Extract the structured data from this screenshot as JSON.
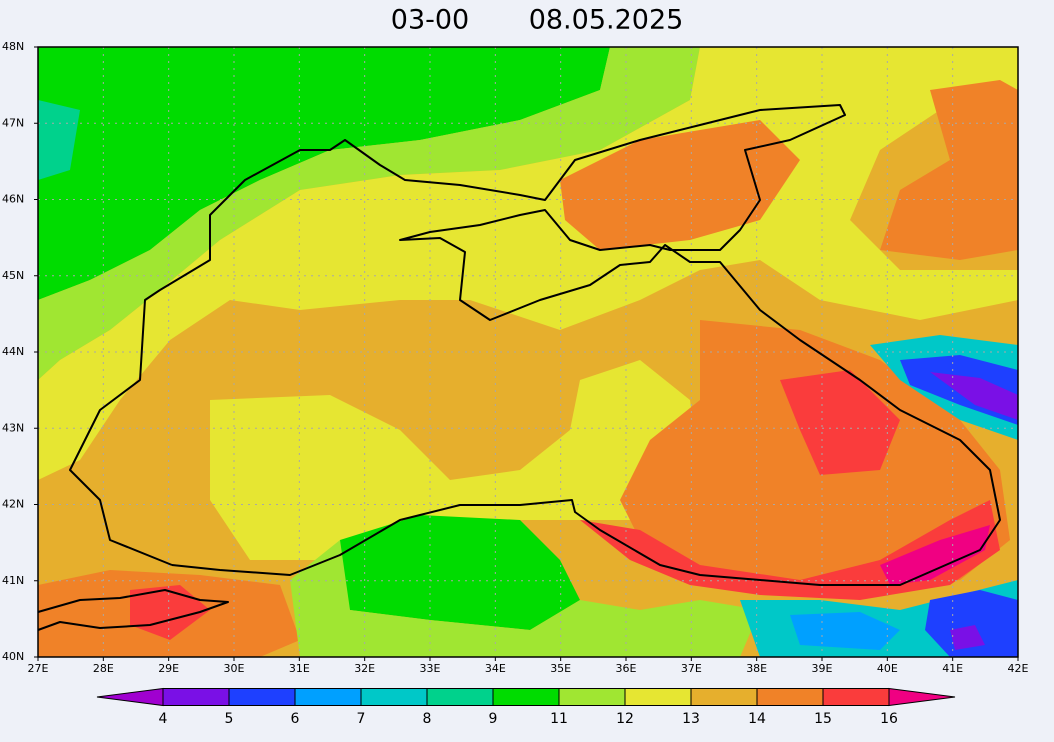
{
  "header": {
    "time": "03-00",
    "date": "08.05.2025"
  },
  "map": {
    "lat_labels": [
      "48N",
      "47N",
      "46N",
      "45N",
      "44N",
      "43N",
      "42N",
      "41N",
      "40N"
    ],
    "lon_labels": [
      "27E",
      "28E",
      "29E",
      "30E",
      "31E",
      "32E",
      "33E",
      "34E",
      "35E",
      "36E",
      "37E",
      "38E",
      "39E",
      "40E",
      "41E",
      "42E"
    ]
  },
  "colorbar": {
    "labels": [
      "4",
      "5",
      "6",
      "7",
      "8",
      "9",
      "11",
      "12",
      "13",
      "14",
      "15",
      "16"
    ],
    "colors": [
      "#a000d0",
      "#7a10e6",
      "#1e40ff",
      "#00a0ff",
      "#00c8c8",
      "#00d28c",
      "#00dc00",
      "#a0e632",
      "#e6e632",
      "#e6af2d",
      "#f08228",
      "#fa3c3c",
      "#f00082"
    ]
  }
}
